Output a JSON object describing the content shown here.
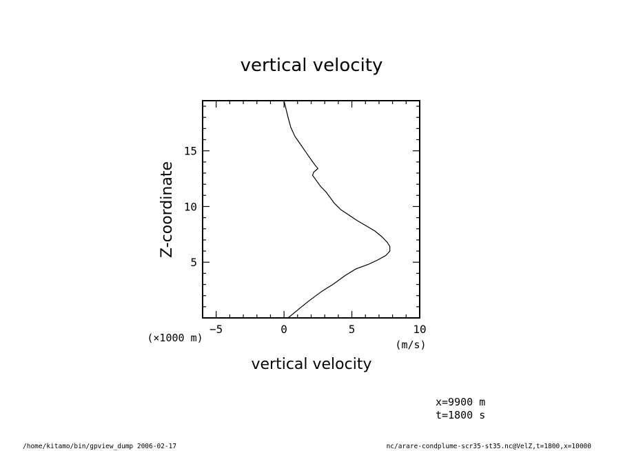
{
  "chart_data": {
    "type": "line",
    "title": "vertical velocity",
    "xlabel": "vertical velocity",
    "ylabel": "Z-coordinate",
    "x_units": "(m/s)",
    "y_units": "(×1000 m)",
    "xlim": [
      -6,
      10
    ],
    "ylim": [
      0,
      19.5
    ],
    "x_ticks": [
      -5,
      0,
      5,
      10
    ],
    "y_ticks": [
      5,
      10,
      15
    ],
    "grid": false,
    "series": [
      {
        "points": [
          [
            0.3,
            0.0
          ],
          [
            1.0,
            0.7
          ],
          [
            1.8,
            1.5
          ],
          [
            2.8,
            2.4
          ],
          [
            3.6,
            3.0
          ],
          [
            4.5,
            3.8
          ],
          [
            5.3,
            4.4
          ],
          [
            6.2,
            4.8
          ],
          [
            6.9,
            5.2
          ],
          [
            7.5,
            5.6
          ],
          [
            7.8,
            6.0
          ],
          [
            7.8,
            6.4
          ],
          [
            7.6,
            6.8
          ],
          [
            7.2,
            7.3
          ],
          [
            6.7,
            7.8
          ],
          [
            6.0,
            8.3
          ],
          [
            5.3,
            8.8
          ],
          [
            4.7,
            9.3
          ],
          [
            4.2,
            9.7
          ],
          [
            3.7,
            10.3
          ],
          [
            3.4,
            10.8
          ],
          [
            3.1,
            11.3
          ],
          [
            2.7,
            11.8
          ],
          [
            2.4,
            12.3
          ],
          [
            2.1,
            12.8
          ],
          [
            2.2,
            13.1
          ],
          [
            2.5,
            13.4
          ],
          [
            2.3,
            13.7
          ],
          [
            2.0,
            14.2
          ],
          [
            1.6,
            14.9
          ],
          [
            1.2,
            15.6
          ],
          [
            0.8,
            16.3
          ],
          [
            0.5,
            17.1
          ],
          [
            0.3,
            18.0
          ],
          [
            0.0,
            19.5
          ]
        ]
      }
    ]
  },
  "annotations": {
    "coord_x": "x=9900 m",
    "coord_t": "t=1800 s",
    "footer_left": "/home/kitamo/bin/gpview_dump  2006-02-17",
    "footer_right": "nc/arare-condplume-scr35-st35.nc@VelZ,t=1800,x=10000"
  }
}
